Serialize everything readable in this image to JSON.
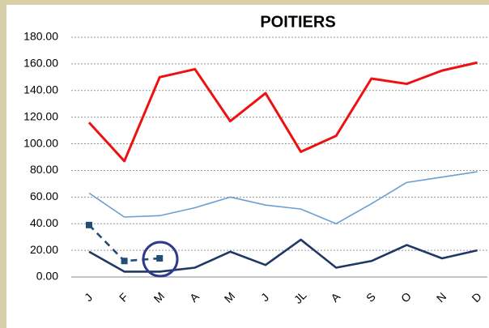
{
  "chart_data": {
    "type": "line",
    "title": "POITIERS",
    "categories": [
      "J",
      "F",
      "M",
      "A",
      "M",
      "J",
      "JL",
      "A",
      "S",
      "O",
      "N",
      "D"
    ],
    "series": [
      {
        "color": "#ee1111",
        "values": [
          116,
          87,
          150,
          156,
          117,
          138,
          94,
          106,
          149,
          145,
          155,
          161
        ]
      },
      {
        "color": "#6a9fd4",
        "values": [
          63,
          45,
          46,
          52,
          60,
          54,
          51,
          40,
          55,
          71,
          75,
          79
        ]
      },
      {
        "color": "#1f3864",
        "values": [
          19,
          4,
          4,
          7,
          19,
          9,
          28,
          7,
          12,
          24,
          14,
          20
        ]
      },
      {
        "color": "#1f4e79",
        "dashed": true,
        "markers": true,
        "values": [
          39,
          12,
          14,
          null,
          null,
          null,
          null,
          null,
          null,
          null,
          null,
          null
        ]
      }
    ],
    "ylim": [
      0,
      180
    ],
    "yticks": [
      {
        "value": 0,
        "label": "0.00"
      },
      {
        "value": 20,
        "label": "20.00"
      },
      {
        "value": 40,
        "label": "40.00"
      },
      {
        "value": 60,
        "label": "60.00"
      },
      {
        "value": 80,
        "label": "80.00"
      },
      {
        "value": 100,
        "label": "100.00"
      },
      {
        "value": 120,
        "label": "120.00"
      },
      {
        "value": 140,
        "label": "140.00"
      },
      {
        "value": 160,
        "label": "160.00"
      },
      {
        "value": 180,
        "label": "180.00"
      }
    ],
    "grid": true
  }
}
